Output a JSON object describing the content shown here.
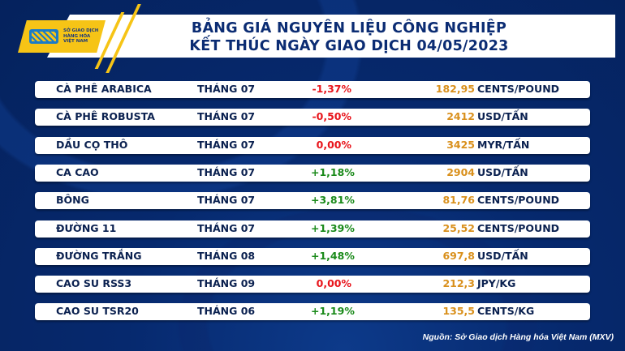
{
  "logo": {
    "text": "SỞ GIAO DỊCH\nHÀNG HÓA\nVIỆT NAM"
  },
  "title": {
    "line1": "BẢNG GIÁ NGUYÊN LIỆU CÔNG NGHIỆP",
    "line2": "KẾT THÚC NGÀY GIAO DỊCH 04/05/2023"
  },
  "colors": {
    "negative": "#e8141b",
    "neutral": "#e8141b",
    "positive": "#1a8a1a",
    "price": "#d9901c",
    "background": "#06296e",
    "accent": "#f6c416"
  },
  "rows": [
    {
      "name": "CÀ PHÊ ARABICA",
      "month": "THÁNG 07",
      "change": "-1,37%",
      "trend": "negative",
      "price": "182,95",
      "unit": "CENTS/POUND"
    },
    {
      "name": "CÀ PHÊ ROBUSTA",
      "month": "THÁNG 07",
      "change": "-0,50%",
      "trend": "negative",
      "price": "2412",
      "unit": "USD/TẤN"
    },
    {
      "name": "DẦU CỌ THÔ",
      "month": "THÁNG 07",
      "change": "0,00%",
      "trend": "neutral",
      "price": "3425",
      "unit": "MYR/TẤN"
    },
    {
      "name": "CA CAO",
      "month": "THÁNG 07",
      "change": "+1,18%",
      "trend": "positive",
      "price": "2904",
      "unit": "USD/TẤN"
    },
    {
      "name": "BÔNG",
      "month": "THÁNG 07",
      "change": "+3,81%",
      "trend": "positive",
      "price": "81,76",
      "unit": "CENTS/POUND"
    },
    {
      "name": "ĐƯỜNG 11",
      "month": "THÁNG 07",
      "change": "+1,39%",
      "trend": "positive",
      "price": "25,52",
      "unit": "CENTS/POUND"
    },
    {
      "name": "ĐƯỜNG TRẮNG",
      "month": "THÁNG 08",
      "change": "+1,48%",
      "trend": "positive",
      "price": "697,8",
      "unit": "USD/TẤN"
    },
    {
      "name": "CAO SU RSS3",
      "month": "THÁNG 09",
      "change": "0,00%",
      "trend": "neutral",
      "price": "212,3",
      "unit": "JPY/KG"
    },
    {
      "name": "CAO SU TSR20",
      "month": "THÁNG 06",
      "change": "+1,19%",
      "trend": "positive",
      "price": "135,5",
      "unit": "CENTS/KG"
    }
  ],
  "source": "Nguồn: Sở Giao dịch Hàng hóa Việt Nam (MXV)"
}
